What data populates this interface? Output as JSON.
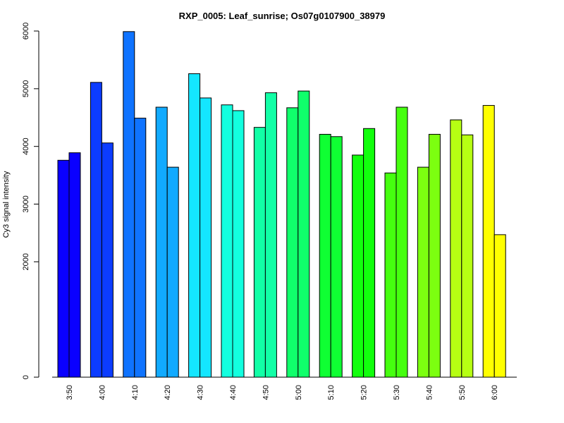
{
  "chart_data": {
    "type": "bar",
    "title": "RXP_0005: Leaf_sunrise; Os07g0107900_38979",
    "xlabel": "",
    "ylabel": "Cy3 signal intensity",
    "yticks": [
      0,
      2000,
      3000,
      4000,
      5000,
      6000
    ],
    "ylim": [
      0,
      6000
    ],
    "categories": [
      "3:50",
      "4:00",
      "4:10",
      "4:20",
      "4:30",
      "4:40",
      "4:50",
      "5:00",
      "5:10",
      "5:20",
      "5:30",
      "5:40",
      "5:50",
      "6:00"
    ],
    "colors": [
      "#0a00ff",
      "#0c3cff",
      "#0f73ff",
      "#11aaff",
      "#14e6ff",
      "#13ffdf",
      "#12ffa6",
      "#10ff6b",
      "#0fff33",
      "#12ff0d",
      "#45ff0f",
      "#7cff10",
      "#b6ff13",
      "#ffff00"
    ],
    "series": [
      {
        "values": [
          3760,
          5110,
          5990,
          4680,
          5260,
          4720,
          4330,
          4670,
          4210,
          3850,
          3540,
          3640,
          4460,
          4710
        ]
      },
      {
        "values": [
          3890,
          4060,
          4490,
          3640,
          4840,
          4620,
          4930,
          4960,
          4170,
          4310,
          4680,
          4210,
          4200,
          2470
        ]
      }
    ]
  }
}
